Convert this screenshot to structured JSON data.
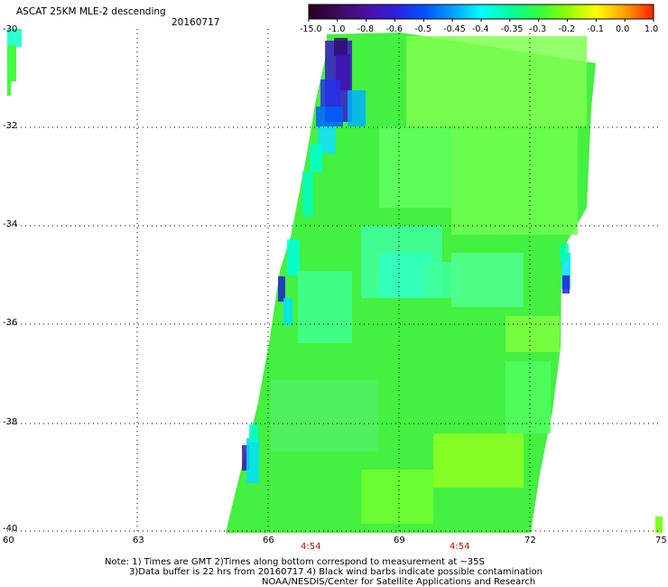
{
  "header": {
    "title": "ASCAT 25KM MLE-2 descending",
    "date": "20160717"
  },
  "colorbar": {
    "labels": [
      "-15.0",
      "-1.0",
      "-0.8",
      "-0.6",
      "-0.5",
      "-0.45",
      "-0.4",
      "-0.35",
      "-0.3",
      "-0.2",
      "-0.1",
      "0.0",
      "1.0"
    ],
    "colors": [
      "#2a0020",
      "#3a0a5a",
      "#4a10a0",
      "#3020e0",
      "#0050ff",
      "#00a0ff",
      "#00ffff",
      "#00ffa0",
      "#30ff40",
      "#90ff00",
      "#ffff00",
      "#ffa000",
      "#ff2000"
    ]
  },
  "map": {
    "y_ticks": [
      "-30",
      "-32",
      "-34",
      "-36",
      "-38",
      "-40"
    ],
    "x_ticks": [
      "60",
      "63",
      "66",
      "69",
      "72",
      "75"
    ],
    "time_labels": [
      "4:54",
      "4:54"
    ]
  },
  "notes": {
    "line1": "Note: 1) Times are GMT 2)Times along bottom correspond to measurement at ~35S",
    "line2": "3)Data buffer is 22 hrs from 20160717 4) Black wind barbs indicate possible contamination",
    "line3": "NOAA/NESDIS/Center for Satellite Applications and Research"
  }
}
